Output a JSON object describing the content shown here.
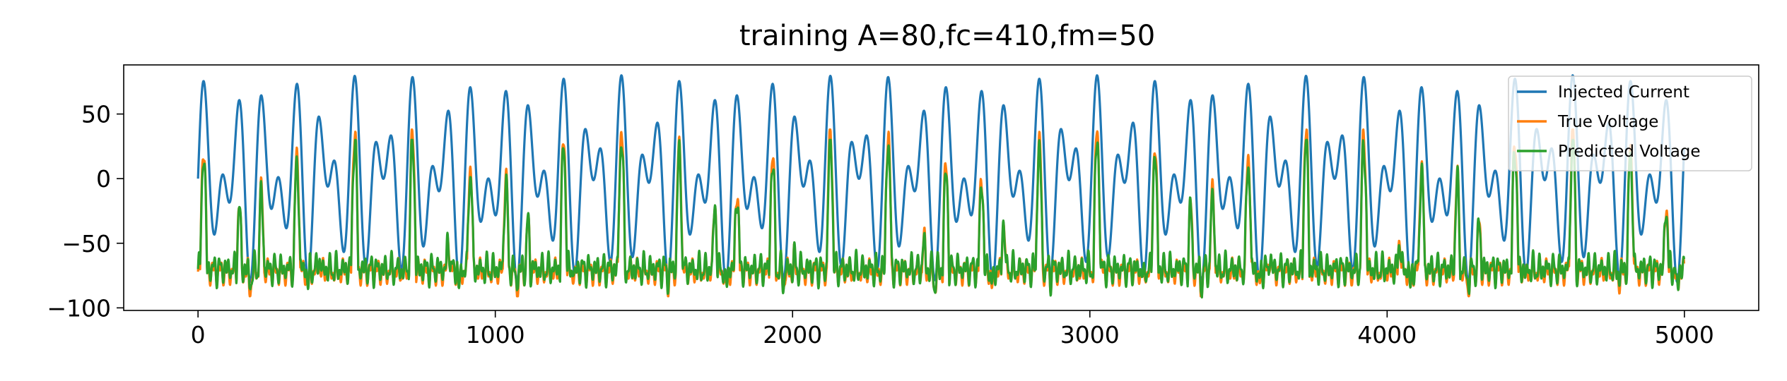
{
  "chart_data": {
    "type": "line",
    "title": "training A=80,fc=410,fm=50",
    "xlabel": "",
    "ylabel": "",
    "xlim": [
      -250,
      5250
    ],
    "ylim": [
      -102,
      88
    ],
    "xticks": [
      0,
      1000,
      2000,
      3000,
      4000,
      5000
    ],
    "xtick_labels": [
      "0",
      "1000",
      "2000",
      "3000",
      "4000",
      "5000"
    ],
    "yticks": [
      50,
      0,
      -50,
      -100
    ],
    "ytick_labels": [
      "50",
      "0",
      "−50",
      "−100"
    ],
    "grid": false,
    "legend_position": "top-right",
    "series": [
      {
        "name": "Injected Current",
        "color": "#1f77b4",
        "n_points": 5000,
        "description_values": {
          "amplitude": 80,
          "carrier_period_samples": 64,
          "modulation_period_samples": 100,
          "min": -80,
          "max": 80
        }
      },
      {
        "name": "True Voltage",
        "color": "#ff7f0e",
        "n_points": 5000,
        "description_values": {
          "min": -91,
          "max": 38,
          "baseline": -72
        }
      },
      {
        "name": "Predicted Voltage",
        "color": "#2ca02c",
        "n_points": 5000,
        "description_values": {
          "min": -92,
          "max": 30,
          "baseline": -70
        }
      }
    ]
  }
}
